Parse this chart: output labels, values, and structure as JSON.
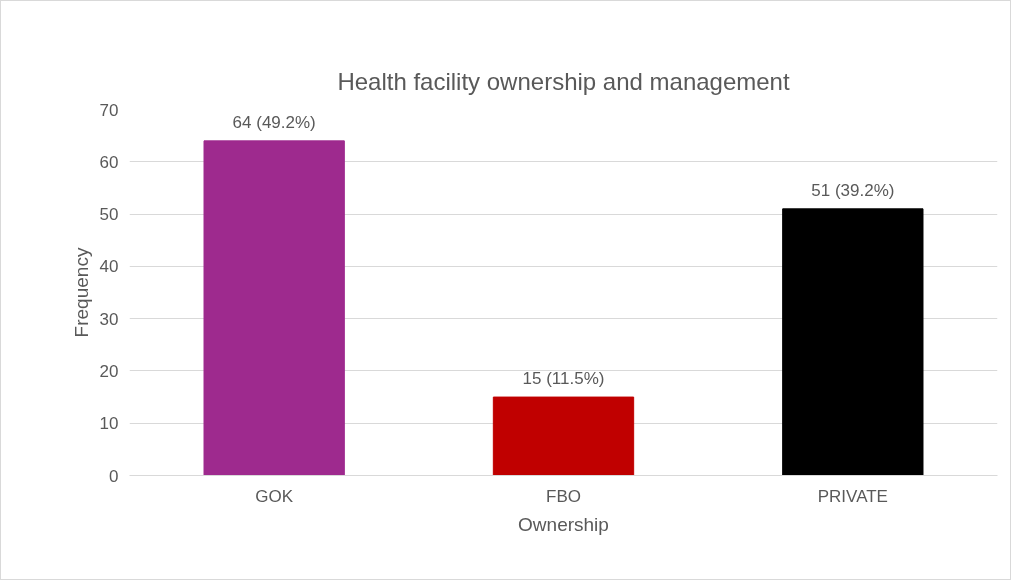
{
  "chart_data": {
    "type": "bar",
    "title": "Health facility ownership and management",
    "xlabel": "Ownership",
    "ylabel": "Frequency",
    "categories": [
      "GOK",
      "FBO",
      "PRIVATE"
    ],
    "values": [
      64,
      15,
      51
    ],
    "colors": [
      "#9e2a8e",
      "#c00000",
      "#000000"
    ],
    "value_labels": [
      "64 (49.2%)",
      "15 (11.5%)",
      "51 (39.2%)"
    ],
    "ylim": [
      0,
      70
    ],
    "yticks": [
      0,
      10,
      20,
      30,
      40,
      50,
      60,
      70
    ],
    "grid": "y"
  }
}
